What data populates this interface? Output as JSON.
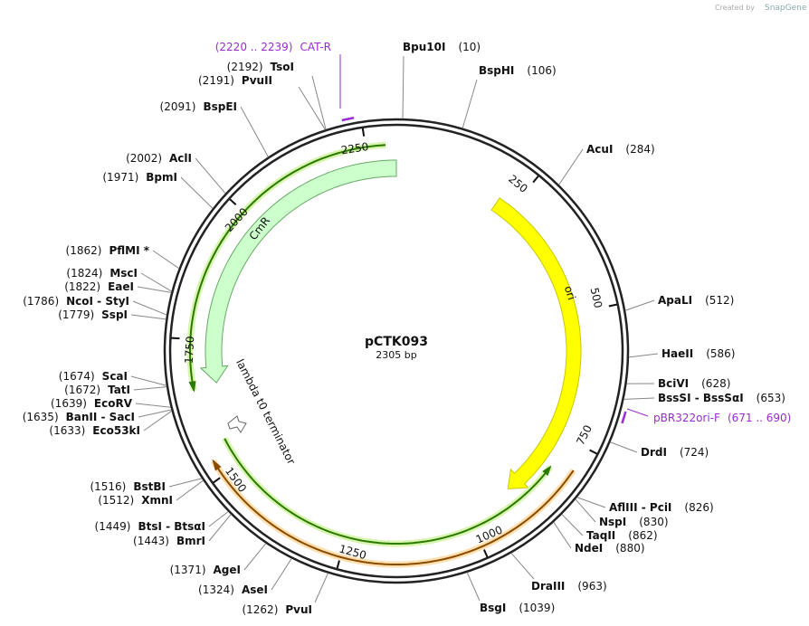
{
  "watermark": {
    "prefix": "Created by",
    "brand": "SnapGene"
  },
  "plasmid": {
    "name": "pCTK093",
    "size": "2305 bp"
  },
  "features": [
    {
      "label": "ori"
    },
    {
      "label": "CmR"
    },
    {
      "label": "lambda t0 terminator"
    }
  ],
  "primers": [
    {
      "name": "CAT-R",
      "range": "(2220 .. 2239)"
    },
    {
      "name": "pBR322ori-F",
      "range": "(671 .. 690)"
    }
  ],
  "ruler": [
    "250",
    "500",
    "750",
    "1000",
    "1250",
    "1500",
    "1750",
    "2000",
    "2250"
  ],
  "enzymes": [
    {
      "name": "Bpu10I",
      "site": "(10)"
    },
    {
      "name": "BspHI",
      "site": "(106)"
    },
    {
      "name": "AcuI",
      "site": "(284)"
    },
    {
      "name": "ApaLI",
      "site": "(512)"
    },
    {
      "name": "HaeII",
      "site": "(586)"
    },
    {
      "name": "BciVI",
      "site": "(628)"
    },
    {
      "name": "BssSI  - BssSαI",
      "site": "(653)"
    },
    {
      "name": "DrdI",
      "site": "(724)"
    },
    {
      "name": "AflIII  - PciI",
      "site": "(826)"
    },
    {
      "name": "NspI",
      "site": "(830)"
    },
    {
      "name": "TaqII",
      "site": "(862)"
    },
    {
      "name": "NdeI",
      "site": "(880)"
    },
    {
      "name": "DraIII",
      "site": "(963)"
    },
    {
      "name": "BsgI",
      "site": "(1039)"
    },
    {
      "name": "PvuI",
      "site": "(1262)"
    },
    {
      "name": "AseI",
      "site": "(1324)"
    },
    {
      "name": "AgeI",
      "site": "(1371)"
    },
    {
      "name": "BmrI",
      "site": "(1443)"
    },
    {
      "name": "BtsI  - BtsαI",
      "site": "(1449)"
    },
    {
      "name": "XmnI",
      "site": "(1512)"
    },
    {
      "name": "BstBI",
      "site": "(1516)"
    },
    {
      "name": "Eco53kI",
      "site": "(1633)"
    },
    {
      "name": "BanII  - SacI",
      "site": "(1635)"
    },
    {
      "name": "EcoRV",
      "site": "(1639)"
    },
    {
      "name": "TatI",
      "site": "(1672)"
    },
    {
      "name": "ScaI",
      "site": "(1674)"
    },
    {
      "name": "SspI",
      "site": "(1779)"
    },
    {
      "name": "NcoI  - StyI",
      "site": "(1786)"
    },
    {
      "name": "EaeI",
      "site": "(1822)"
    },
    {
      "name": "MscI",
      "site": "(1824)"
    },
    {
      "name": "PflMI *",
      "site": "(1862)"
    },
    {
      "name": "BpmI",
      "site": "(1971)"
    },
    {
      "name": "AclI",
      "site": "(2002)"
    },
    {
      "name": "BspEI",
      "site": "(2091)"
    },
    {
      "name": "PvuII",
      "site": "(2191)"
    },
    {
      "name": "TsoI",
      "site": "(2192)"
    }
  ]
}
